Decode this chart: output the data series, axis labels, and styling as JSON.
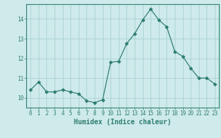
{
  "x": [
    0,
    1,
    2,
    3,
    4,
    5,
    6,
    7,
    8,
    9,
    10,
    11,
    12,
    13,
    14,
    15,
    16,
    17,
    18,
    19,
    20,
    21,
    22,
    23
  ],
  "y": [
    10.4,
    10.8,
    10.3,
    10.3,
    10.4,
    10.3,
    10.2,
    9.85,
    9.75,
    9.9,
    11.8,
    11.85,
    12.75,
    13.25,
    13.95,
    14.5,
    13.95,
    13.6,
    12.35,
    12.1,
    11.5,
    11.0,
    11.0,
    10.7
  ],
  "line_color": "#2e7d6e",
  "marker": "D",
  "marker_size": 2.5,
  "background_color": "#ceeaea",
  "grid_color": "#aed4d4",
  "xlabel": "Humidex (Indice chaleur)",
  "xlim": [
    -0.5,
    23.5
  ],
  "ylim": [
    9.5,
    14.75
  ],
  "yticks": [
    10,
    11,
    12,
    13,
    14
  ],
  "xticks": [
    0,
    1,
    2,
    3,
    4,
    5,
    6,
    7,
    8,
    9,
    10,
    11,
    12,
    13,
    14,
    15,
    16,
    17,
    18,
    19,
    20,
    21,
    22,
    23
  ],
  "tick_label_fontsize": 5.5,
  "xlabel_fontsize": 7
}
